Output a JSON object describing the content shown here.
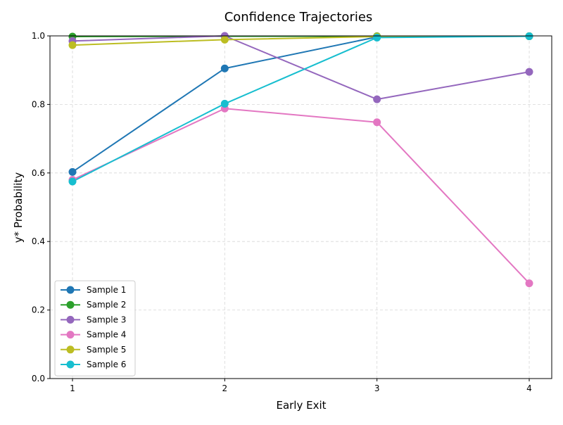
{
  "chart_data": {
    "type": "line",
    "title": "Confidence Trajectories",
    "xlabel": "Early Exit",
    "ylabel": "y* Probability",
    "x": [
      1,
      2,
      3,
      4
    ],
    "x_ticks": [
      "1",
      "2",
      "3",
      "4"
    ],
    "y_ticks": [
      "0.0",
      "0.2",
      "0.4",
      "0.6",
      "0.8",
      "1.0"
    ],
    "ylim": [
      0,
      1
    ],
    "grid": true,
    "legend_position": "lower-left",
    "series": [
      {
        "name": "Sample 1",
        "color": "#1f77b4",
        "values": [
          0.603,
          0.905,
          0.997,
          0.999
        ]
      },
      {
        "name": "Sample 2",
        "color": "#2ca02c",
        "values": [
          0.998,
          0.999,
          0.999,
          0.999
        ]
      },
      {
        "name": "Sample 3",
        "color": "#9467bd",
        "values": [
          0.985,
          1.0,
          0.815,
          0.895
        ]
      },
      {
        "name": "Sample 4",
        "color": "#e377c2",
        "values": [
          0.58,
          0.788,
          0.748,
          0.278
        ]
      },
      {
        "name": "Sample 5",
        "color": "#bcbd22",
        "values": [
          0.973,
          0.989,
          0.998,
          0.999
        ]
      },
      {
        "name": "Sample 6",
        "color": "#17becf",
        "values": [
          0.575,
          0.802,
          0.995,
          0.999
        ]
      }
    ]
  }
}
